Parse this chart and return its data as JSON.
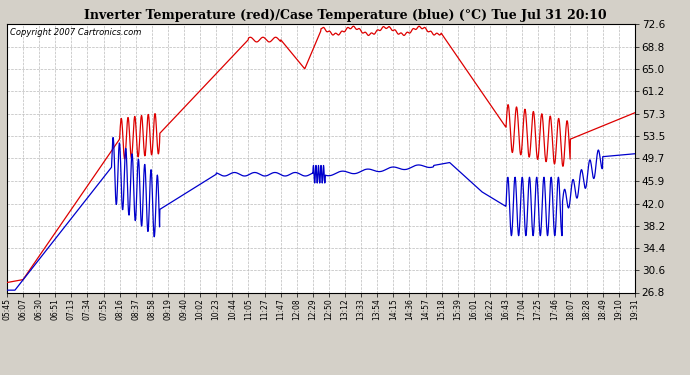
{
  "title": "Inverter Temperature (red)/Case Temperature (blue) (°C) Tue Jul 31 20:10",
  "copyright": "Copyright 2007 Cartronics.com",
  "background_color": "#d4d0c8",
  "plot_bg_color": "#ffffff",
  "grid_color": "#bbbbbb",
  "red_color": "#dd0000",
  "blue_color": "#0000cc",
  "ylim": [
    26.8,
    72.6
  ],
  "yticks": [
    26.8,
    30.6,
    34.4,
    38.2,
    42.0,
    45.9,
    49.7,
    53.5,
    57.3,
    61.2,
    65.0,
    68.8,
    72.6
  ],
  "xtick_labels": [
    "05:45",
    "06:07",
    "06:30",
    "06:51",
    "07:13",
    "07:34",
    "07:55",
    "08:16",
    "08:37",
    "08:58",
    "09:19",
    "09:40",
    "10:02",
    "10:23",
    "10:44",
    "11:05",
    "11:27",
    "11:47",
    "12:08",
    "12:29",
    "12:50",
    "13:12",
    "13:33",
    "13:54",
    "14:15",
    "14:36",
    "14:57",
    "15:18",
    "15:39",
    "16:01",
    "16:22",
    "16:43",
    "17:04",
    "17:25",
    "17:46",
    "18:07",
    "18:28",
    "18:49",
    "19:10",
    "19:31"
  ]
}
